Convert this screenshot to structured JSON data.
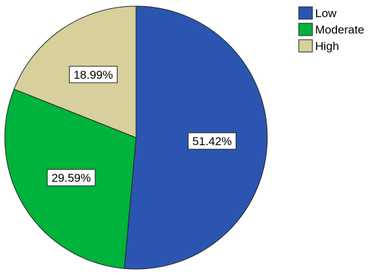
{
  "chart_data": {
    "type": "pie",
    "categories": [
      "Low",
      "Moderate",
      "High"
    ],
    "values": [
      51.42,
      29.59,
      18.99
    ],
    "data_labels": [
      "51.42%",
      "29.59%",
      "18.99%"
    ],
    "colors": [
      "#2B55B0",
      "#00B33C",
      "#D7CF9C"
    ],
    "start_angle": "12 o'clock",
    "direction": "clockwise",
    "legend": {
      "placement": "top-right",
      "entries": [
        "Low",
        "Moderate",
        "High"
      ]
    }
  }
}
